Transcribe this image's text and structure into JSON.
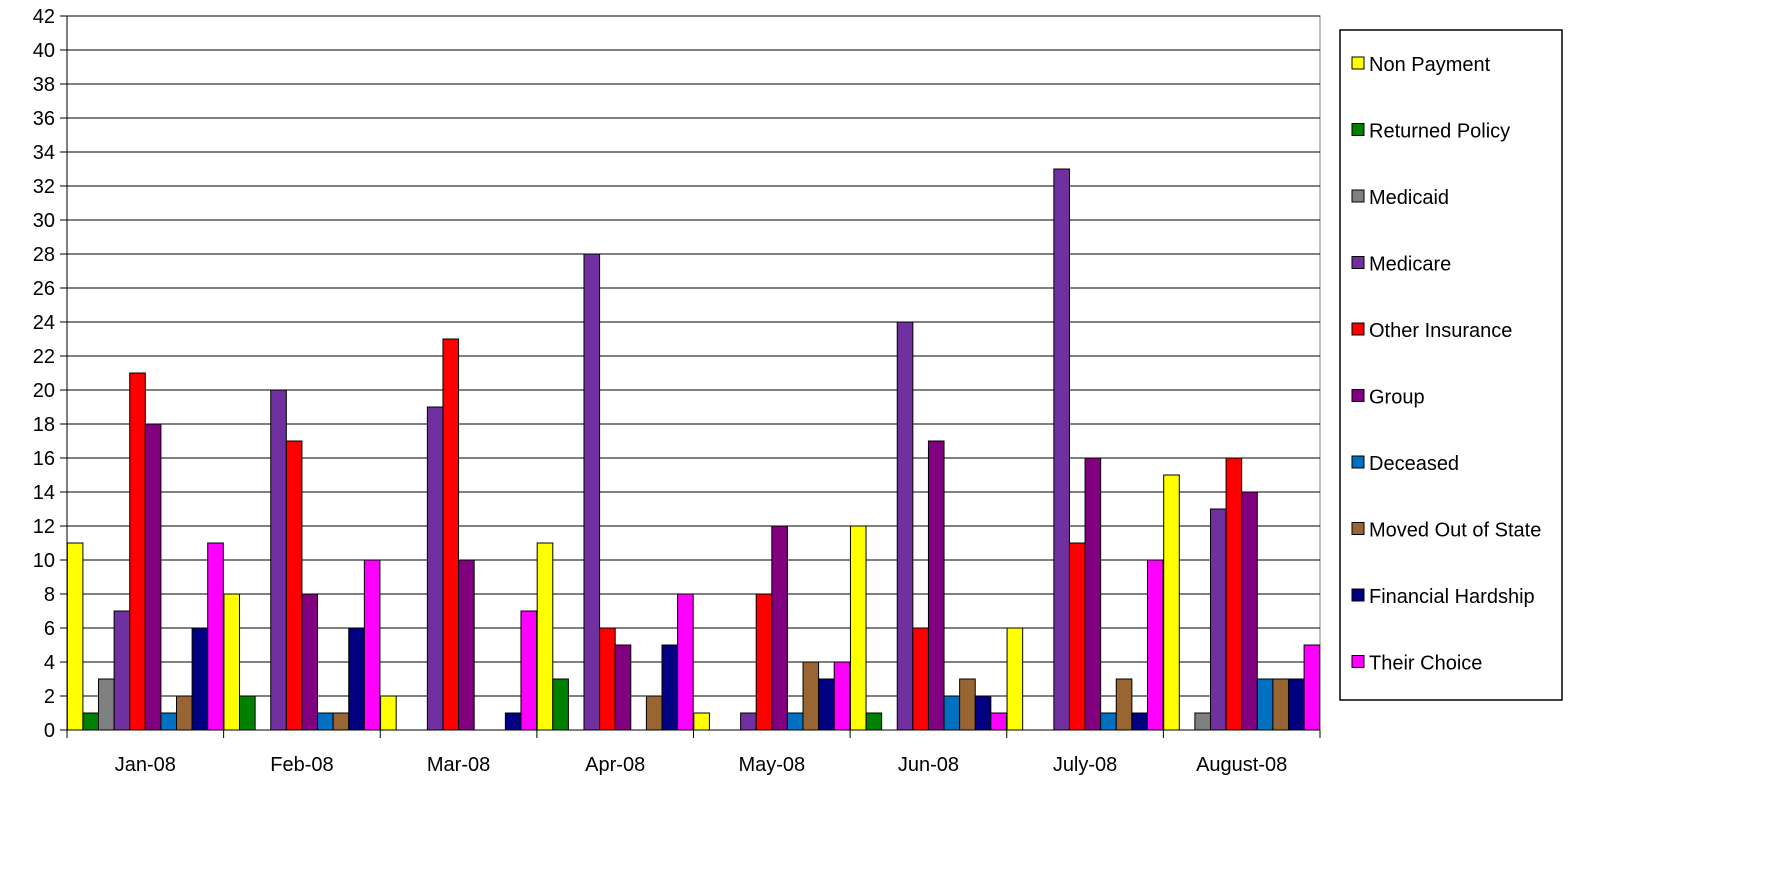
{
  "chart_data": {
    "type": "bar",
    "title": "",
    "xlabel": "",
    "ylabel": "",
    "ylim": [
      0,
      42
    ],
    "y_tick_step": 2,
    "grid": true,
    "legend_position": "right",
    "categories": [
      "Jan-08",
      "Feb-08",
      "Mar-08",
      "Apr-08",
      "May-08",
      "Jun-08",
      "July-08",
      "August-08"
    ],
    "series": [
      {
        "name": "Non Payment",
        "color": "#ffff00",
        "values": [
          11,
          8,
          2,
          11,
          1,
          12,
          6,
          15
        ]
      },
      {
        "name": "Returned Policy",
        "color": "#008000",
        "values": [
          1,
          2,
          0,
          3,
          0,
          1,
          0,
          0
        ]
      },
      {
        "name": "Medicaid",
        "color": "#808080",
        "values": [
          3,
          0,
          0,
          0,
          0,
          0,
          0,
          1
        ]
      },
      {
        "name": "Medicare",
        "color": "#7030a0",
        "values": [
          7,
          20,
          19,
          28,
          1,
          24,
          33,
          13
        ]
      },
      {
        "name": "Other Insurance",
        "color": "#ff0000",
        "values": [
          21,
          17,
          23,
          6,
          8,
          6,
          11,
          16
        ]
      },
      {
        "name": "Group",
        "color": "#800080",
        "values": [
          18,
          8,
          10,
          5,
          12,
          17,
          16,
          14
        ]
      },
      {
        "name": "Deceased",
        "color": "#0070c0",
        "values": [
          1,
          1,
          0,
          0,
          1,
          2,
          1,
          3
        ]
      },
      {
        "name": "Moved Out of State",
        "color": "#996633",
        "values": [
          2,
          1,
          0,
          2,
          4,
          3,
          3,
          3
        ]
      },
      {
        "name": "Financial Hardship",
        "color": "#000080",
        "values": [
          6,
          6,
          1,
          5,
          3,
          2,
          1,
          3
        ]
      },
      {
        "name": "Their Choice",
        "color": "#ff00ff",
        "values": [
          11,
          10,
          7,
          8,
          4,
          1,
          10,
          5
        ]
      }
    ]
  }
}
